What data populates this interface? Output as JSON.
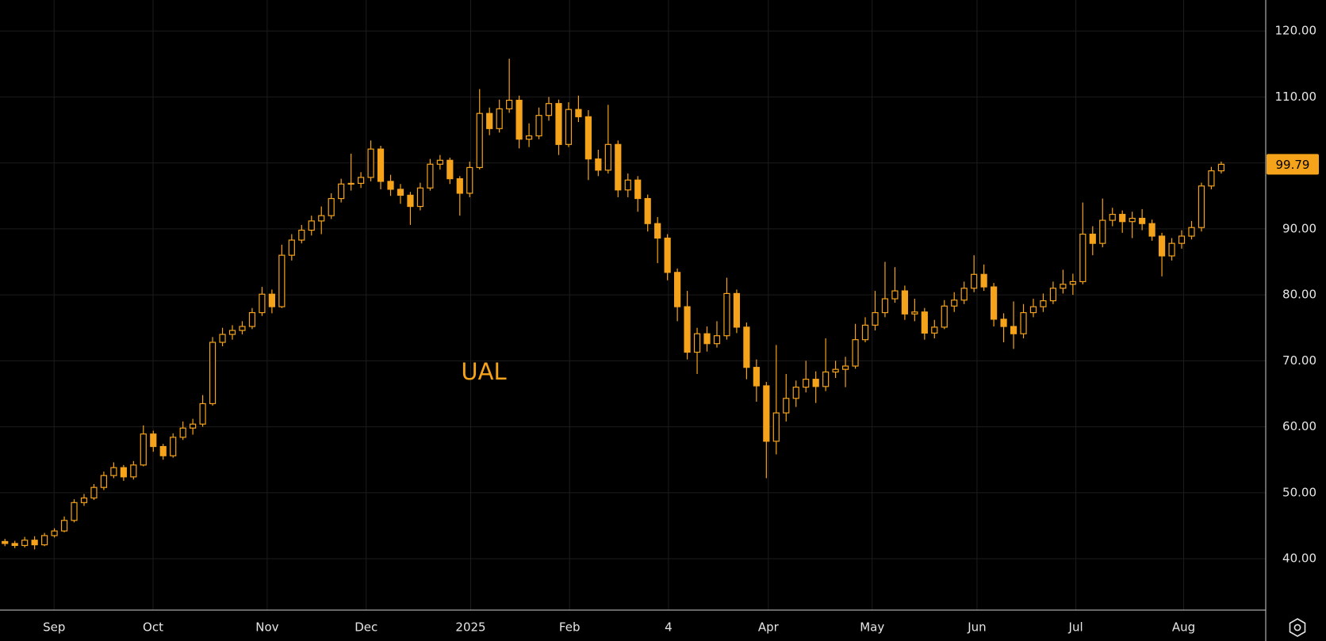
{
  "chart_data": {
    "type": "candlestick",
    "title": "UAL",
    "color": "#f5a31a",
    "grid": true,
    "xlim": [
      -0.5,
      127.5
    ],
    "xticks": [
      {
        "value": 4.97,
        "label": "Sep"
      },
      {
        "value": 14.98,
        "label": "Oct"
      },
      {
        "value": 26.52,
        "label": "Nov"
      },
      {
        "value": 36.53,
        "label": "Dec"
      },
      {
        "value": 47.1,
        "label": "2025"
      },
      {
        "value": 57.1,
        "label": "Feb"
      },
      {
        "value": 67.1,
        "label": "4"
      },
      {
        "value": 77.2,
        "label": "Apr"
      },
      {
        "value": 87.7,
        "label": "May"
      },
      {
        "value": 98.3,
        "label": "Jun"
      },
      {
        "value": 108.3,
        "label": "Jul"
      },
      {
        "value": 119.2,
        "label": "Aug"
      }
    ],
    "ylim": [
      32.2,
      124.7
    ],
    "yticks": [
      {
        "value": 40,
        "label": "40.00"
      },
      {
        "value": 50,
        "label": "50.00"
      },
      {
        "value": 60,
        "label": "60.00"
      },
      {
        "value": 70,
        "label": "70.00"
      },
      {
        "value": 80,
        "label": "80.00"
      },
      {
        "value": 90,
        "label": "90.00"
      },
      {
        "value": 100,
        "label": "100.00"
      },
      {
        "value": 110,
        "label": "110.00"
      },
      {
        "value": 120,
        "label": "120.00"
      }
    ],
    "open": [
      42.6,
      42.3,
      42.0,
      42.8,
      42.1,
      43.5,
      44.2,
      45.8,
      48.5,
      49.2,
      50.8,
      52.6,
      53.8,
      52.4,
      54.2,
      58.9,
      57.0,
      55.6,
      58.4,
      59.8,
      60.4,
      63.5,
      72.8,
      74.0,
      74.6,
      75.2,
      77.3,
      80.1,
      78.2,
      86.0,
      88.3,
      89.8,
      91.2,
      92.0,
      94.6,
      96.8,
      96.9,
      97.8,
      102.1,
      97.2,
      96.0,
      95.1,
      93.4,
      96.2,
      99.8,
      100.4,
      97.6,
      95.4,
      99.3,
      107.5,
      105.2,
      108.2,
      109.5,
      103.6,
      104.1,
      107.2,
      109.0,
      102.8,
      108.1,
      107.0,
      100.6,
      98.9,
      102.8,
      95.9,
      97.4,
      94.6,
      90.8,
      88.6,
      83.4,
      78.2,
      71.3,
      74.1,
      72.6,
      73.8,
      80.2,
      75.1,
      69.0,
      66.2,
      57.8,
      62.1,
      64.3,
      66.0,
      67.2,
      66.1,
      68.3,
      68.7,
      69.2,
      73.2,
      75.4,
      77.3,
      79.4,
      80.6,
      77.1,
      77.4,
      74.2,
      75.1,
      78.3,
      79.2,
      81.0,
      83.1,
      81.2,
      76.3,
      75.2,
      74.1,
      77.3,
      78.2,
      79.1,
      81.0,
      81.6,
      82.0,
      89.2,
      87.8,
      91.3,
      92.2,
      91.1,
      91.6,
      90.8,
      88.9,
      85.9,
      87.8,
      88.9,
      90.2,
      96.5,
      98.8
    ],
    "high": [
      43.0,
      42.7,
      43.3,
      43.4,
      43.9,
      44.6,
      46.4,
      49.0,
      49.8,
      51.3,
      53.2,
      54.6,
      54.2,
      54.8,
      60.2,
      59.4,
      57.4,
      59.0,
      60.8,
      61.2,
      64.8,
      73.6,
      75.0,
      75.4,
      76.0,
      78.0,
      81.2,
      80.8,
      87.6,
      89.2,
      90.6,
      92.0,
      93.4,
      95.4,
      97.6,
      101.4,
      98.6,
      103.4,
      102.6,
      98.2,
      96.8,
      95.6,
      97.0,
      100.6,
      101.2,
      100.8,
      98.0,
      100.2,
      111.2,
      108.4,
      109.6,
      115.8,
      110.2,
      106.0,
      108.4,
      110.0,
      109.6,
      109.2,
      110.2,
      108.0,
      102.0,
      108.8,
      103.4,
      98.4,
      98.0,
      95.2,
      91.8,
      89.2,
      84.0,
      80.6,
      75.0,
      75.2,
      76.0,
      82.6,
      80.8,
      75.8,
      70.2,
      66.8,
      72.4,
      68.0,
      67.0,
      70.0,
      68.4,
      73.4,
      70.0,
      70.6,
      75.6,
      76.6,
      80.6,
      85.0,
      84.2,
      81.4,
      79.4,
      78.0,
      76.2,
      79.2,
      80.4,
      82.0,
      86.0,
      84.6,
      81.8,
      77.2,
      79.0,
      78.6,
      79.4,
      80.2,
      82.0,
      83.8,
      83.2,
      94.0,
      90.4,
      94.6,
      93.2,
      92.8,
      92.6,
      93.0,
      91.4,
      89.4,
      88.6,
      89.8,
      91.2,
      97.0,
      99.4,
      100.2
    ],
    "low": [
      41.9,
      41.6,
      41.7,
      41.4,
      41.9,
      43.2,
      44.0,
      45.5,
      48.0,
      48.9,
      50.4,
      52.2,
      51.8,
      52.0,
      54.0,
      56.2,
      55.0,
      55.3,
      58.0,
      58.8,
      60.0,
      63.2,
      72.2,
      73.2,
      74.0,
      74.8,
      76.8,
      77.2,
      78.0,
      85.2,
      87.8,
      89.0,
      89.2,
      91.5,
      94.0,
      95.8,
      96.2,
      97.2,
      96.0,
      95.0,
      93.8,
      90.6,
      92.8,
      95.8,
      99.0,
      96.8,
      92.0,
      94.8,
      99.0,
      104.2,
      104.6,
      107.6,
      102.2,
      102.4,
      103.6,
      106.4,
      101.2,
      102.4,
      106.2,
      97.4,
      98.0,
      98.4,
      94.8,
      94.8,
      92.6,
      89.6,
      84.8,
      82.2,
      76.0,
      70.2,
      68.0,
      71.4,
      72.0,
      73.2,
      74.2,
      67.2,
      63.8,
      52.2,
      55.8,
      60.8,
      63.0,
      65.2,
      63.6,
      65.4,
      67.4,
      66.0,
      68.8,
      72.8,
      74.6,
      76.6,
      78.8,
      76.2,
      76.0,
      73.2,
      73.4,
      74.8,
      77.4,
      78.6,
      80.4,
      80.6,
      75.2,
      72.8,
      71.8,
      73.4,
      76.6,
      77.4,
      78.6,
      80.2,
      80.0,
      81.6,
      86.0,
      87.2,
      90.4,
      89.4,
      88.6,
      89.8,
      88.2,
      82.8,
      85.2,
      87.0,
      88.4,
      89.6,
      96.0,
      98.4
    ],
    "close": [
      42.3,
      42.0,
      42.8,
      42.1,
      43.5,
      44.2,
      45.8,
      48.5,
      49.2,
      50.8,
      52.6,
      53.8,
      52.4,
      54.2,
      58.9,
      57.0,
      55.6,
      58.4,
      59.8,
      60.4,
      63.5,
      72.8,
      74.0,
      74.6,
      75.2,
      77.3,
      80.1,
      78.2,
      86.0,
      88.3,
      89.8,
      91.2,
      92.0,
      94.6,
      96.8,
      96.9,
      97.8,
      102.1,
      97.2,
      96.0,
      95.1,
      93.4,
      96.2,
      99.8,
      100.4,
      97.6,
      95.4,
      99.3,
      107.5,
      105.2,
      108.2,
      109.5,
      103.6,
      104.1,
      107.2,
      109.0,
      102.8,
      108.1,
      107.0,
      100.6,
      98.9,
      102.8,
      95.9,
      97.4,
      94.6,
      90.8,
      88.6,
      83.4,
      78.2,
      71.3,
      74.1,
      72.6,
      73.8,
      80.2,
      75.1,
      69.0,
      66.2,
      57.8,
      62.1,
      64.3,
      66.0,
      67.2,
      66.1,
      68.3,
      68.7,
      69.2,
      73.2,
      75.4,
      77.3,
      79.4,
      80.6,
      77.1,
      77.4,
      74.2,
      75.1,
      78.3,
      79.2,
      81.0,
      83.1,
      81.2,
      76.3,
      75.2,
      74.1,
      77.3,
      78.2,
      79.1,
      81.0,
      81.6,
      82.0,
      89.2,
      87.8,
      91.3,
      92.2,
      91.1,
      91.6,
      90.8,
      88.9,
      85.9,
      87.8,
      88.9,
      90.2,
      96.5,
      98.8,
      99.79
    ]
  }
}
